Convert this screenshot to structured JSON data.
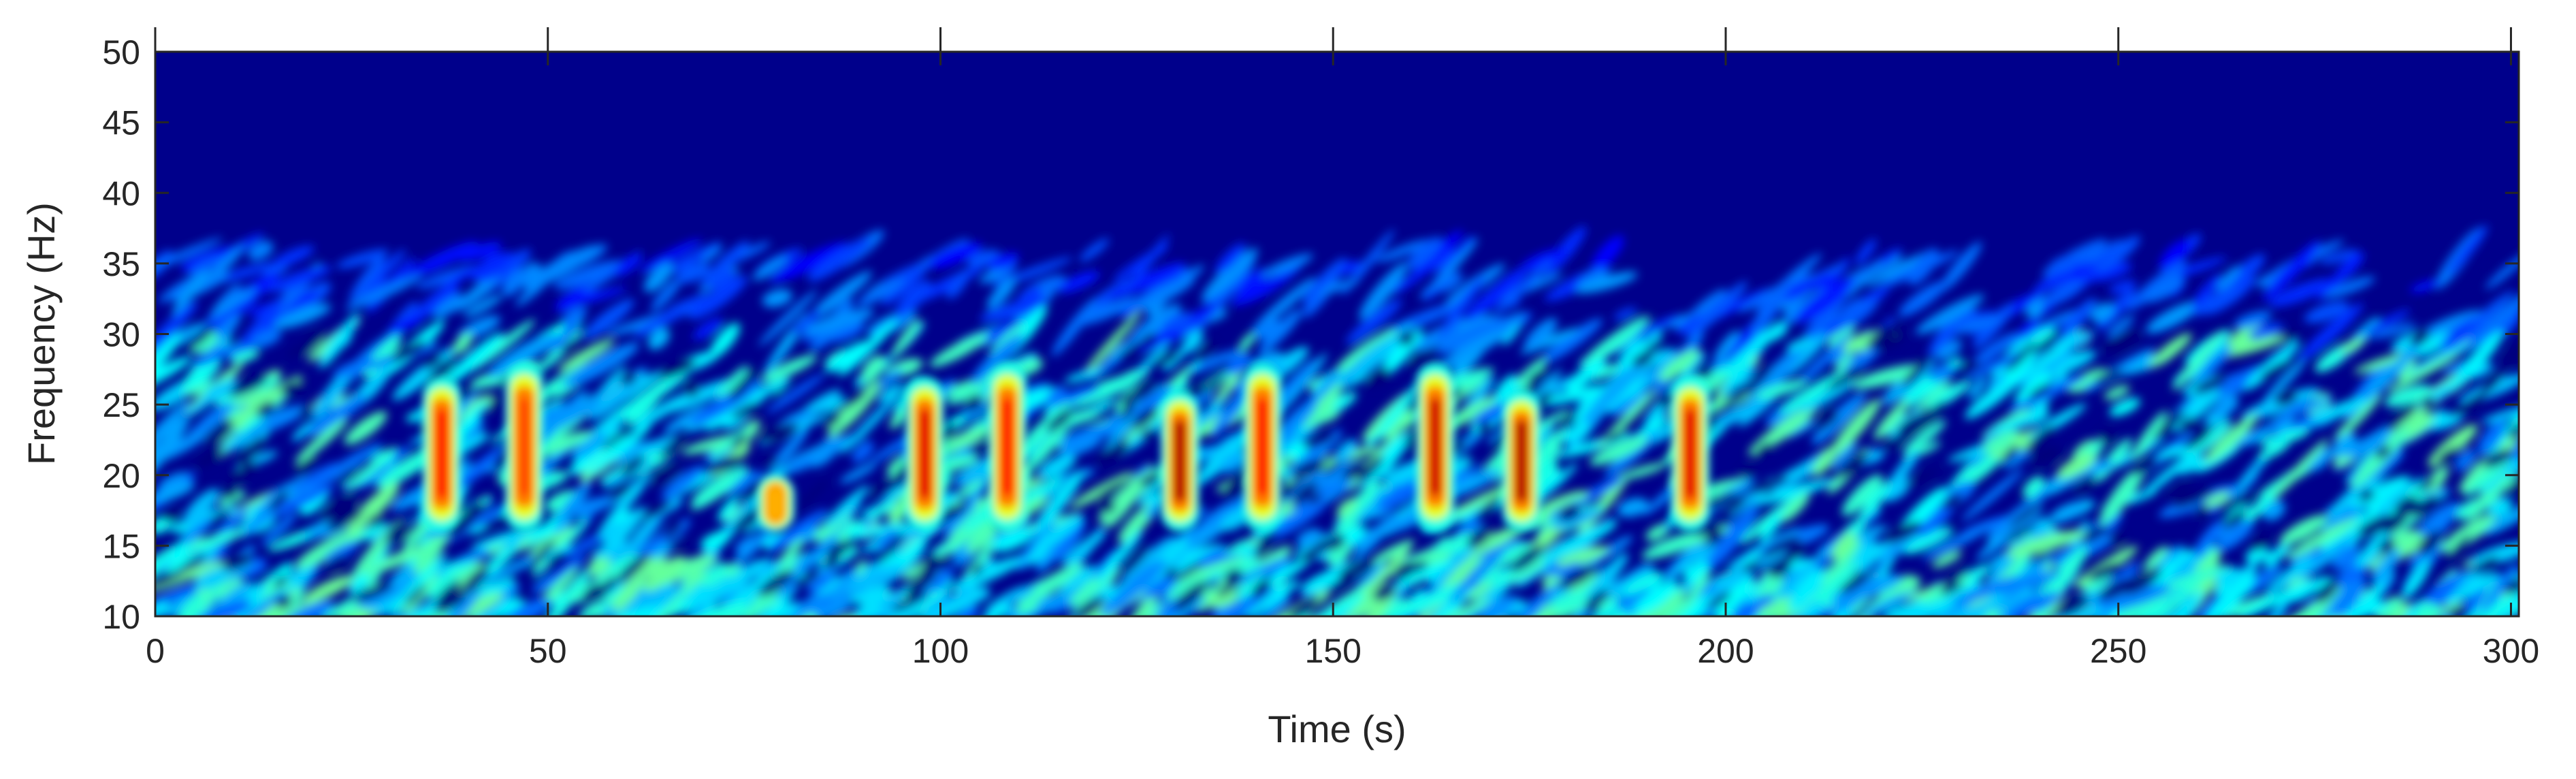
{
  "chart_data": {
    "type": "heatmap",
    "title": "",
    "xlabel": "Time (s)",
    "ylabel": "Frequency (Hz)",
    "xlim": [
      0,
      301
    ],
    "ylim": [
      10,
      50
    ],
    "xticks": [
      0,
      50,
      100,
      150,
      200,
      250,
      300
    ],
    "yticks": [
      10,
      15,
      20,
      25,
      30,
      35,
      40,
      45,
      50
    ],
    "colormap": "jet",
    "grid": false,
    "background_level_color": "#00008B",
    "background_noise": {
      "band_hz": [
        10,
        30
      ],
      "fades_out_above_hz": 35,
      "level": "low-to-moderate (blue/cyan)"
    },
    "events": [
      {
        "time": 36.5,
        "freq_range": [
          16,
          27
        ],
        "peak_level": 0.85
      },
      {
        "time": 47.0,
        "freq_range": [
          16,
          28
        ],
        "peak_level": 0.8
      },
      {
        "time": 79.0,
        "freq_range": [
          16,
          20
        ],
        "peak_level": 0.7
      },
      {
        "time": 98.0,
        "freq_range": [
          16,
          27
        ],
        "peak_level": 0.9
      },
      {
        "time": 108.5,
        "freq_range": [
          16,
          28
        ],
        "peak_level": 0.85
      },
      {
        "time": 130.5,
        "freq_range": [
          16,
          26
        ],
        "peak_level": 0.95
      },
      {
        "time": 141.0,
        "freq_range": [
          16,
          28
        ],
        "peak_level": 0.85
      },
      {
        "time": 163.0,
        "freq_range": [
          16,
          28
        ],
        "peak_level": 0.92
      },
      {
        "time": 174.0,
        "freq_range": [
          16,
          26
        ],
        "peak_level": 0.95
      },
      {
        "time": 195.5,
        "freq_range": [
          16,
          27
        ],
        "peak_level": 0.9
      }
    ]
  },
  "colors": {
    "axis": "#262626",
    "frame": "#262626",
    "background": "#ffffff"
  }
}
